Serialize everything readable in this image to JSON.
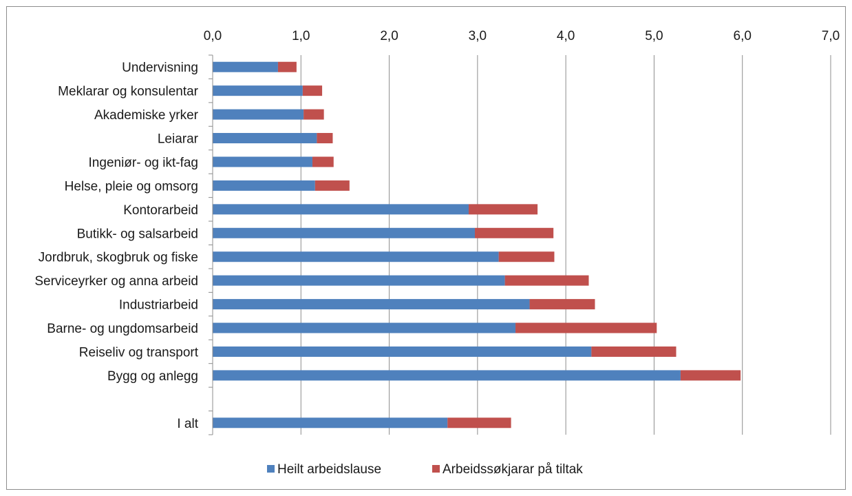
{
  "chart_data": {
    "type": "bar",
    "orientation": "horizontal",
    "stacked": true,
    "categories": [
      "Undervisning",
      "Meklarar og konsulentar",
      "Akademiske yrker",
      "Leiarar",
      "Ingeniør- og ikt-fag",
      "Helse, pleie og omsorg",
      "Kontorarbeid",
      "Butikk- og salsarbeid",
      "Jordbruk, skogbruk og fiske",
      "Serviceyrker og anna arbeid",
      "Industriarbeid",
      "Barne- og ungdomsarbeid",
      "Reiseliv og transport",
      "Bygg og anlegg",
      "",
      "I alt"
    ],
    "series": [
      {
        "name": "Heilt arbeidslause",
        "color": "#4f81bd",
        "values": [
          0.74,
          1.02,
          1.03,
          1.18,
          1.13,
          1.16,
          2.9,
          2.97,
          3.24,
          3.31,
          3.59,
          3.43,
          4.29,
          5.3,
          null,
          2.66
        ]
      },
      {
        "name": "Arbeidssøkjarar på tiltak",
        "color": "#c0504d",
        "values": [
          0.21,
          0.22,
          0.23,
          0.18,
          0.24,
          0.39,
          0.78,
          0.89,
          0.63,
          0.95,
          0.74,
          1.6,
          0.96,
          0.68,
          null,
          0.72
        ]
      }
    ],
    "xlim": [
      0,
      7
    ],
    "xticks": [
      "0,0",
      "1,0",
      "2,0",
      "3,0",
      "4,0",
      "5,0",
      "6,0",
      "7,0"
    ],
    "xaxis_position": "top",
    "grid": true,
    "legend_position": "bottom",
    "title": "",
    "xlabel": "",
    "ylabel": ""
  }
}
